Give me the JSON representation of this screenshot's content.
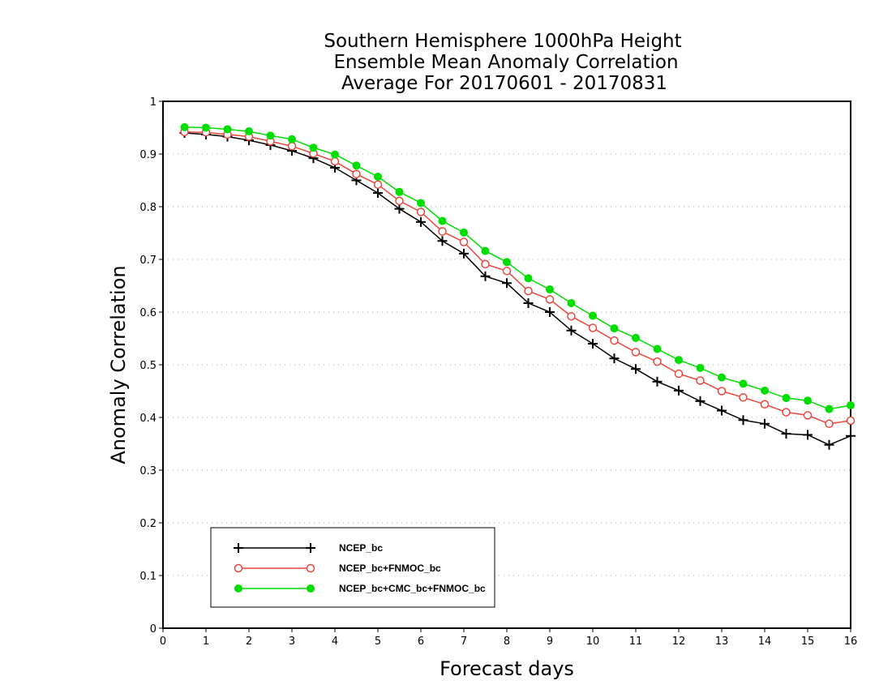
{
  "chart_data": {
    "type": "line",
    "title": [
      "Southern Hemisphere 1000hPa Height",
      "Ensemble Mean Anomaly Correlation",
      "Average For 20170601 - 20170831"
    ],
    "xlabel": "Forecast days",
    "ylabel": "Anomaly Correlation",
    "xlim": [
      0,
      16
    ],
    "ylim": [
      0,
      1
    ],
    "xticks": [
      "0",
      "1",
      "2",
      "3",
      "4",
      "5",
      "6",
      "7",
      "8",
      "9",
      "10",
      "11",
      "12",
      "13",
      "14",
      "15",
      "16"
    ],
    "yticks": [
      "0",
      "0.1",
      "0.2",
      "0.3",
      "0.4",
      "0.5",
      "0.6",
      "0.7",
      "0.8",
      "0.9",
      "1"
    ],
    "grid": true,
    "legend_position": "bottom-left",
    "x": [
      0.5,
      1,
      1.5,
      2,
      2.5,
      3,
      3.5,
      4,
      4.5,
      5,
      5.5,
      6,
      6.5,
      7,
      7.5,
      8,
      8.5,
      9,
      9.5,
      10,
      10.5,
      11,
      11.5,
      12,
      12.5,
      13,
      13.5,
      14,
      14.5,
      15,
      15.5,
      16
    ],
    "series": [
      {
        "name": "NCEP_bc",
        "color": "#000000",
        "marker": "plus",
        "values": [
          0.94,
          0.937,
          0.933,
          0.926,
          0.917,
          0.906,
          0.892,
          0.874,
          0.85,
          0.826,
          0.796,
          0.771,
          0.735,
          0.711,
          0.668,
          0.655,
          0.617,
          0.6,
          0.565,
          0.54,
          0.512,
          0.492,
          0.468,
          0.451,
          0.431,
          0.413,
          0.395,
          0.388,
          0.369,
          0.367,
          0.348,
          0.365
        ]
      },
      {
        "name": "NCEP_bc+FNMOC_bc",
        "color": "#e8473e",
        "marker": "open-circle",
        "values": [
          0.942,
          0.941,
          0.937,
          0.933,
          0.924,
          0.915,
          0.901,
          0.886,
          0.862,
          0.842,
          0.811,
          0.79,
          0.753,
          0.733,
          0.691,
          0.678,
          0.64,
          0.624,
          0.592,
          0.57,
          0.546,
          0.524,
          0.506,
          0.483,
          0.47,
          0.45,
          0.438,
          0.425,
          0.41,
          0.404,
          0.388,
          0.394
        ]
      },
      {
        "name": "NCEP_bc+CMC_bc+FNMOC_bc",
        "color": "#00dd00",
        "marker": "filled-circle",
        "values": [
          0.951,
          0.95,
          0.947,
          0.943,
          0.935,
          0.928,
          0.912,
          0.899,
          0.878,
          0.857,
          0.828,
          0.807,
          0.773,
          0.751,
          0.716,
          0.695,
          0.664,
          0.643,
          0.617,
          0.593,
          0.569,
          0.551,
          0.53,
          0.509,
          0.494,
          0.476,
          0.464,
          0.451,
          0.437,
          0.432,
          0.416,
          0.423
        ]
      }
    ]
  }
}
